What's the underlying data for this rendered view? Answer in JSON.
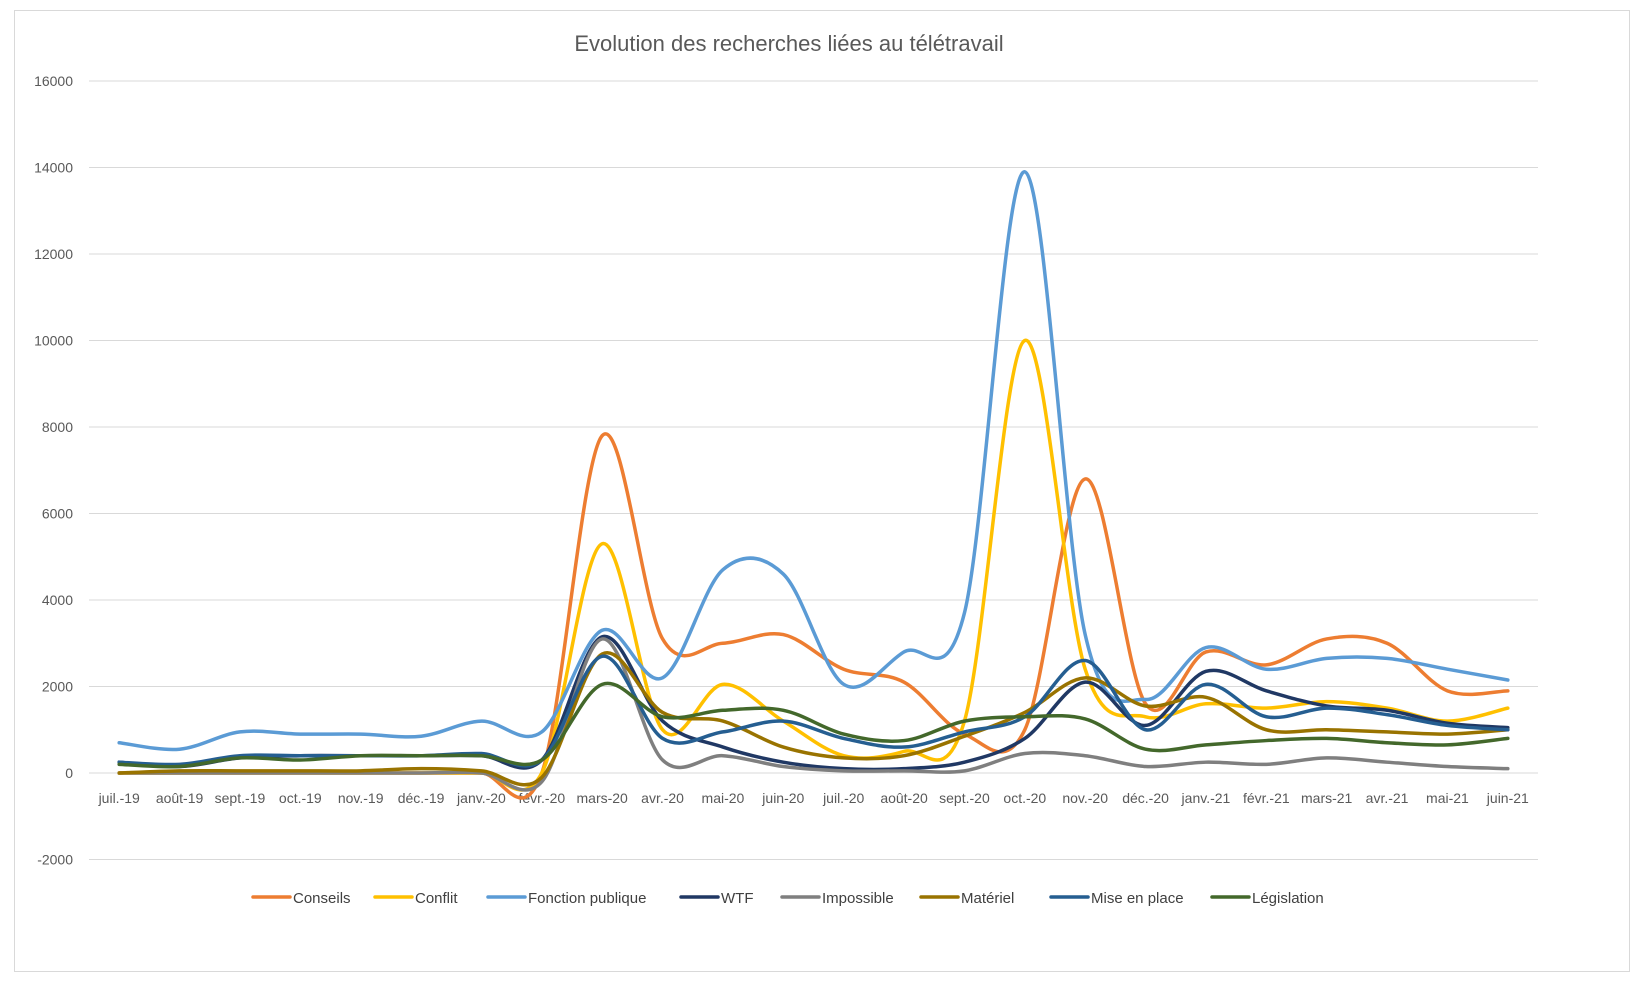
{
  "chart_data": {
    "type": "line",
    "title": "Evolution des recherches liées au télétravail",
    "xlabel": "",
    "ylabel": "",
    "ylim": [
      -2000,
      16000
    ],
    "yticks": [
      -2000,
      0,
      2000,
      4000,
      6000,
      8000,
      10000,
      12000,
      14000,
      16000
    ],
    "grid": true,
    "legend_position": "bottom",
    "smooth": true,
    "categories": [
      "juil.-19",
      "août-19",
      "sept.-19",
      "oct.-19",
      "nov.-19",
      "déc.-19",
      "janv.-20",
      "févr.-20",
      "mars-20",
      "avr.-20",
      "mai-20",
      "juin-20",
      "juil.-20",
      "août-20",
      "sept.-20",
      "oct.-20",
      "nov.-20",
      "déc.-20",
      "janv.-21",
      "févr.-21",
      "mars-21",
      "avr.-21",
      "mai-21",
      "juin-21"
    ],
    "series": [
      {
        "name": "Conseils",
        "color": "#ED7D31",
        "values": [
          0,
          0,
          0,
          0,
          0,
          0,
          0,
          0,
          7800,
          3100,
          3000,
          3200,
          2400,
          2100,
          900,
          1000,
          6800,
          1600,
          2800,
          2500,
          3100,
          3000,
          1900,
          1900
        ]
      },
      {
        "name": "Conflit",
        "color": "#FFC000",
        "values": [
          0,
          0,
          0,
          0,
          0,
          0,
          0,
          0,
          5300,
          1000,
          2050,
          1200,
          400,
          500,
          1200,
          10000,
          2400,
          1300,
          1600,
          1500,
          1650,
          1500,
          1200,
          1500
        ]
      },
      {
        "name": "Fonction publique",
        "color": "#5B9BD5",
        "values": [
          700,
          550,
          950,
          900,
          900,
          850,
          1200,
          950,
          3300,
          2200,
          4700,
          4600,
          2050,
          2800,
          3700,
          13900,
          3200,
          1700,
          2900,
          2400,
          2650,
          2650,
          2400,
          2150
        ]
      },
      {
        "name": "WTF",
        "color": "#203864",
        "values": [
          250,
          150,
          350,
          400,
          400,
          400,
          400,
          300,
          3150,
          1200,
          600,
          250,
          100,
          100,
          250,
          800,
          2100,
          1100,
          2350,
          1900,
          1550,
          1450,
          1150,
          1050
        ]
      },
      {
        "name": "Impossible",
        "color": "#7F7F7F",
        "values": [
          0,
          0,
          0,
          0,
          0,
          0,
          0,
          -200,
          3100,
          300,
          400,
          150,
          50,
          50,
          50,
          450,
          400,
          150,
          250,
          200,
          350,
          250,
          150,
          100
        ]
      },
      {
        "name": "Matériel",
        "color": "#997300",
        "values": [
          0,
          50,
          50,
          50,
          50,
          100,
          50,
          -100,
          2750,
          1400,
          1200,
          600,
          350,
          400,
          850,
          1400,
          2200,
          1550,
          1750,
          1000,
          1000,
          950,
          900,
          1000
        ]
      },
      {
        "name": "Mise en place",
        "color": "#255E91",
        "values": [
          250,
          200,
          400,
          400,
          400,
          400,
          450,
          300,
          2700,
          800,
          950,
          1200,
          800,
          600,
          950,
          1300,
          2600,
          1000,
          2050,
          1300,
          1500,
          1350,
          1100,
          1000
        ]
      },
      {
        "name": "Législation",
        "color": "#43682B",
        "values": [
          200,
          150,
          350,
          300,
          400,
          400,
          400,
          300,
          2050,
          1300,
          1450,
          1450,
          900,
          750,
          1200,
          1300,
          1250,
          550,
          650,
          750,
          800,
          700,
          650,
          800
        ]
      }
    ]
  }
}
